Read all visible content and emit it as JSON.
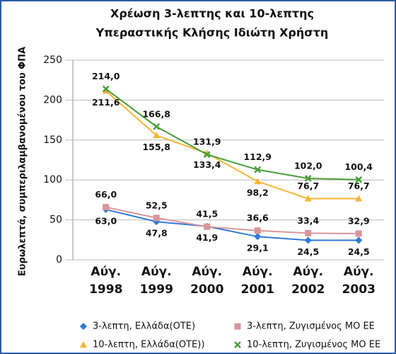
{
  "chart_data": {
    "type": "line",
    "title": [
      "Χρέωση 3-λεπτης και 10-λεπτης",
      "Υπεραστικής Κλήσης Ιδιώτη Χρήστη"
    ],
    "y_label": "Ευρωλεπτά, συμπεριλαμβανομένου του ΦΠΑ",
    "categories": [
      "Αύγ. 1998",
      "Αύγ. 1999",
      "Αύγ. 2000",
      "Αύγ. 2001",
      "Αύγ. 2002",
      "Αύγ. 2003"
    ],
    "ylim": [
      0,
      250
    ],
    "yticks": [
      0,
      50,
      100,
      150,
      200,
      250
    ],
    "grid": true,
    "legend": "bottom",
    "series": [
      {
        "name": "3-λεπτη, Ελλάδα(ΟΤΕ)",
        "color": "#2f7ad8",
        "marker": "diamond",
        "values": [
          63.0,
          47.8,
          41.9,
          29.1,
          24.5,
          24.5
        ],
        "value_labels": [
          "63,0",
          "47,8",
          "41,9",
          "29,1",
          "24,5",
          "24,5"
        ]
      },
      {
        "name": "3-λεπτη, Ζυγισμένος ΜΟ ΕΕ",
        "color": "#d9959b",
        "marker": "square",
        "values": [
          66.0,
          52.5,
          41.5,
          36.6,
          33.4,
          32.9
        ],
        "value_labels": [
          "66,0",
          "52,5",
          "41,5",
          "36,6",
          "33,4",
          "32,9"
        ]
      },
      {
        "name": "10-λεπτη, Ελλάδα(ΟΤΕ))",
        "color": "#f5b535",
        "marker": "triangle",
        "values": [
          211.6,
          155.8,
          133.4,
          98.2,
          76.7,
          76.7
        ],
        "value_labels": [
          "211,6",
          "155,8",
          "133,4",
          "98,2",
          "76,7",
          "76,7"
        ]
      },
      {
        "name": "10-λεπτη, Ζυγισμένος ΜΟ ΕΕ",
        "color": "#4a9e3a",
        "marker": "x",
        "values": [
          214.0,
          166.8,
          131.9,
          112.9,
          102.0,
          100.4
        ],
        "value_labels": [
          "214,0",
          "166,8",
          "131,9",
          "112,9",
          "102,0",
          "100,4"
        ]
      }
    ]
  }
}
